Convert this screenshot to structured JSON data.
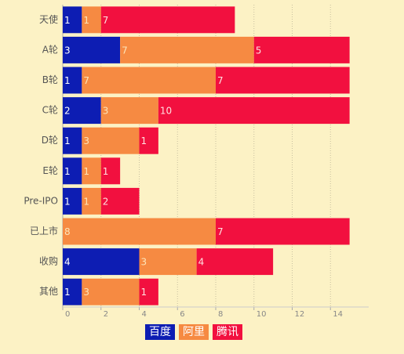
{
  "chart_data": {
    "type": "bar",
    "orientation": "horizontal",
    "stacked": true,
    "categories": [
      "天使",
      "A轮",
      "B轮",
      "C轮",
      "D轮",
      "E轮",
      "Pre-IPO",
      "已上市",
      "收购",
      "其他"
    ],
    "series": [
      {
        "name": "百度",
        "color": "#0d1db3",
        "label_color": "#ffffff",
        "values": [
          1,
          3,
          1,
          2,
          1,
          1,
          1,
          null,
          4,
          1
        ]
      },
      {
        "name": "阿里",
        "color": "#f68a42",
        "label_color": "#fde4b8",
        "values": [
          1,
          7,
          7,
          3,
          3,
          1,
          1,
          8,
          3,
          3
        ]
      },
      {
        "name": "腾讯",
        "color": "#f2103f",
        "label_color": "#ffe0e0",
        "values": [
          7,
          5,
          7,
          10,
          1,
          1,
          2,
          7,
          4,
          1
        ]
      }
    ],
    "xlim": [
      0,
      16
    ],
    "xticks": [
      0,
      2,
      4,
      6,
      8,
      10,
      12,
      14
    ],
    "grid": true
  }
}
